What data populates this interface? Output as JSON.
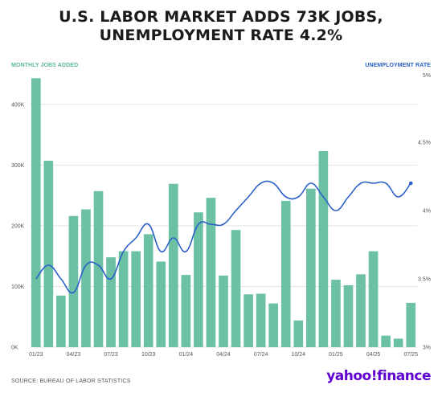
{
  "title": "U.S. LABOR MARKET ADDS 73K JOBS, UNEMPLOYMENT RATE 4.2%",
  "source": "SOURCE: BUREAU OF LABOR STATISTICS",
  "logo": "yahoo!finance",
  "colors": {
    "bars": "#6cc0a3",
    "line": "#2b60c9",
    "left_label": "#5cb898",
    "right_label": "#2b60c9",
    "title": "#1b1b1b"
  },
  "chart_data": {
    "type": "bar",
    "left_axis_title": "MONTHLY JOBS ADDED",
    "right_axis_title": "UNEMPLOYMENT RATE",
    "ylim_left": [
      0,
      450000
    ],
    "ylim_right": [
      3,
      5
    ],
    "y_ticks_left": [
      "0K",
      "100K",
      "200K",
      "300K",
      "400K"
    ],
    "y_ticks_right": [
      "3%",
      "3.5%",
      "4%",
      "4.5%",
      "5%"
    ],
    "x_tick_labels": [
      {
        "index": 0,
        "label": "01/23"
      },
      {
        "index": 3,
        "label": "04/23"
      },
      {
        "index": 6,
        "label": "07/23"
      },
      {
        "index": 9,
        "label": "10/23"
      },
      {
        "index": 12,
        "label": "01/24"
      },
      {
        "index": 15,
        "label": "04/24"
      },
      {
        "index": 18,
        "label": "07/24"
      },
      {
        "index": 21,
        "label": "10/24"
      },
      {
        "index": 24,
        "label": "01/25"
      },
      {
        "index": 27,
        "label": "04/25"
      },
      {
        "index": 30,
        "label": "07/25"
      }
    ],
    "months": [
      "01/23",
      "02/23",
      "03/23",
      "04/23",
      "05/23",
      "06/23",
      "07/23",
      "08/23",
      "09/23",
      "10/23",
      "11/23",
      "12/23",
      "01/24",
      "02/24",
      "03/24",
      "04/24",
      "05/24",
      "06/24",
      "07/24",
      "08/24",
      "09/24",
      "10/24",
      "11/24",
      "12/24",
      "01/25",
      "02/25",
      "03/25",
      "04/25",
      "05/25",
      "06/25",
      "07/25"
    ],
    "series": [
      {
        "name": "MONTHLY JOBS ADDED",
        "type": "bar",
        "axis": "left",
        "values": [
          443000,
          307000,
          85000,
          216000,
          227000,
          257000,
          148000,
          158000,
          158000,
          186000,
          141000,
          269000,
          119000,
          222000,
          246000,
          118000,
          193000,
          87000,
          88000,
          72000,
          241000,
          44000,
          261000,
          323000,
          111000,
          102000,
          120000,
          158000,
          19000,
          14000,
          73000
        ]
      },
      {
        "name": "UNEMPLOYMENT RATE",
        "type": "line",
        "axis": "right",
        "values": [
          3.5,
          3.6,
          3.5,
          3.4,
          3.6,
          3.6,
          3.5,
          3.7,
          3.8,
          3.9,
          3.7,
          3.8,
          3.7,
          3.9,
          3.9,
          3.9,
          4.0,
          4.1,
          4.2,
          4.2,
          4.1,
          4.1,
          4.2,
          4.1,
          4.0,
          4.1,
          4.2,
          4.2,
          4.2,
          4.1,
          4.2
        ]
      }
    ]
  }
}
